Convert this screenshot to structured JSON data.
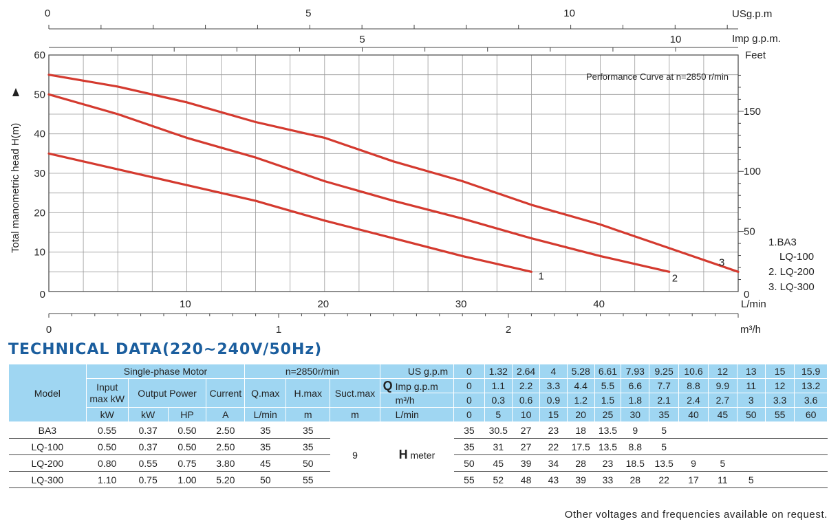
{
  "chart_data": {
    "type": "line",
    "title": "Performance Curve at n=2850 r/min",
    "ylabel": "Total manometric head H(m)",
    "xlabel_primary": "L/min",
    "right_axis_label": "Feet",
    "xlim": [
      0,
      50
    ],
    "ylim": [
      0,
      60
    ],
    "y_ticks": [
      0,
      10,
      20,
      30,
      40,
      50,
      60
    ],
    "x_ticks_lmin": [
      10,
      20,
      30,
      40
    ],
    "right_ticks_feet": [
      0,
      50,
      100,
      150
    ],
    "top_axis_usgpm": {
      "label": "USg.p.m",
      "ticks": [
        "0",
        "5",
        "10"
      ]
    },
    "top_axis_impgpm": {
      "label": "Imp g.p.m.",
      "ticks": [
        "5",
        "10"
      ]
    },
    "bottom_axis_m3h": {
      "label": "m³/h",
      "ticks": [
        "0",
        "1",
        "2"
      ]
    },
    "grid": true,
    "legend": [
      "1.BA3",
      "LQ-100",
      "2. LQ-200",
      "3. LQ-300"
    ],
    "series": [
      {
        "name": "1",
        "x": [
          0,
          10,
          15,
          20,
          25,
          30,
          35
        ],
        "y": [
          35,
          27,
          23,
          18,
          13.5,
          9,
          5
        ]
      },
      {
        "name": "2",
        "x": [
          0,
          5,
          10,
          15,
          20,
          25,
          30,
          35,
          40,
          45
        ],
        "y": [
          50,
          45,
          39,
          34,
          28,
          23,
          18.5,
          13.5,
          9,
          5
        ]
      },
      {
        "name": "3",
        "x": [
          0,
          5,
          10,
          15,
          20,
          25,
          30,
          35,
          40,
          45,
          50
        ],
        "y": [
          55,
          52,
          48,
          43,
          39,
          33,
          28,
          22,
          17,
          11,
          5
        ]
      }
    ],
    "series_color": "#d43a2f"
  },
  "tech": {
    "title": "TECHNICAL DATA(220~240V/50Hz)",
    "model_label": "Model",
    "motor_label": "Single-phase Motor",
    "input_label": "Input max kW",
    "output_label": "Output Power",
    "current_label": "Current",
    "speed_label": "n=2850r/min",
    "qmax_label": "Q.max",
    "hmax_label": "H.max",
    "suct_label": "Suct.max",
    "kw_unit": "kW",
    "hp_unit": "HP",
    "a_unit": "A",
    "lmin_unit": "L/min",
    "m_unit": "m",
    "m_unit2": "m",
    "q_letter": "Q",
    "usgpm_label": "US g.p.m",
    "impgpm_label": "Imp g.p.m",
    "m3h_label": "m³/h",
    "lmin_label": "L/min",
    "usgpm": [
      "0",
      "1.32",
      "2.64",
      "4",
      "5.28",
      "6.61",
      "7.93",
      "9.25",
      "10.6",
      "12",
      "13",
      "15",
      "15.9"
    ],
    "impgpm": [
      "0",
      "1.1",
      "2.2",
      "3.3",
      "4.4",
      "5.5",
      "6.6",
      "7.7",
      "8.8",
      "9.9",
      "11",
      "12",
      "13.2"
    ],
    "m3h": [
      "0",
      "0.3",
      "0.6",
      "0.9",
      "1.2",
      "1.5",
      "1.8",
      "2.1",
      "2.4",
      "2.7",
      "3",
      "3.3",
      "3.6"
    ],
    "lmin": [
      "0",
      "5",
      "10",
      "15",
      "20",
      "25",
      "30",
      "35",
      "40",
      "45",
      "50",
      "55",
      "60"
    ],
    "suct_value": "9",
    "h_letter": "H",
    "h_meter": "meter",
    "rows": [
      {
        "model": "BA3",
        "input": "0.55",
        "kw": "0.37",
        "hp": "0.50",
        "current": "2.50",
        "qmax": "35",
        "hmax": "35",
        "h": [
          "35",
          "30.5",
          "27",
          "23",
          "18",
          "13.5",
          "9",
          "5",
          "",
          "",
          "",
          "",
          ""
        ]
      },
      {
        "model": "LQ-100",
        "input": "0.50",
        "kw": "0.37",
        "hp": "0.50",
        "current": "2.50",
        "qmax": "35",
        "hmax": "35",
        "h": [
          "35",
          "31",
          "27",
          "22",
          "17.5",
          "13.5",
          "8.8",
          "5",
          "",
          "",
          "",
          "",
          ""
        ]
      },
      {
        "model": "LQ-200",
        "input": "0.80",
        "kw": "0.55",
        "hp": "0.75",
        "current": "3.80",
        "qmax": "45",
        "hmax": "50",
        "h": [
          "50",
          "45",
          "39",
          "34",
          "28",
          "23",
          "18.5",
          "13.5",
          "9",
          "5",
          "",
          "",
          ""
        ]
      },
      {
        "model": "LQ-300",
        "input": "1.10",
        "kw": "0.75",
        "hp": "1.00",
        "current": "5.20",
        "qmax": "50",
        "hmax": "55",
        "h": [
          "55",
          "52",
          "48",
          "43",
          "39",
          "33",
          "28",
          "22",
          "17",
          "11",
          "5",
          "",
          ""
        ]
      }
    ],
    "footnote": "Other voltages and frequencies available on request."
  }
}
